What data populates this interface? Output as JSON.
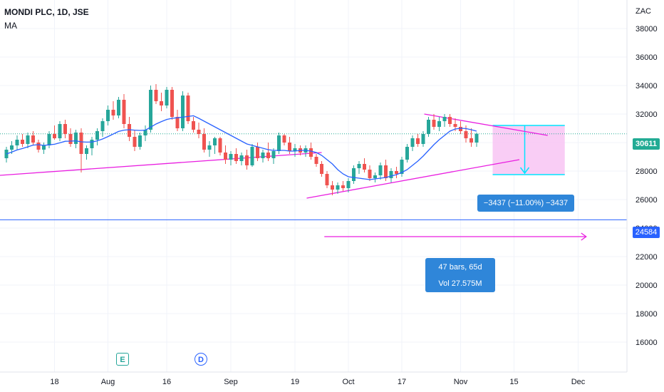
{
  "header": {
    "symbol_line": "MONDI PLC, 1D, JSE",
    "indicator": "MA"
  },
  "chart_data": {
    "type": "candlestick",
    "currency_label": "ZAC",
    "ylim": [
      15000,
      39500
    ],
    "y_ticks": [
      "38000",
      "36000",
      "34000",
      "32000",
      "30000",
      "28000",
      "26000",
      "24000",
      "22000",
      "20000",
      "18000",
      "16000"
    ],
    "x_ticks": [
      {
        "label": "18",
        "bar": 9
      },
      {
        "label": "Aug",
        "bar": 19
      },
      {
        "label": "16",
        "bar": 30
      },
      {
        "label": "Sep",
        "bar": 42
      },
      {
        "label": "19",
        "bar": 54
      },
      {
        "label": "Oct",
        "bar": 64
      },
      {
        "label": "17",
        "bar": 74
      },
      {
        "label": "Nov",
        "bar": 85
      },
      {
        "label": "15",
        "bar": 95
      },
      {
        "label": "Dec",
        "bar": 107
      }
    ],
    "candles": [
      [
        28900,
        29700,
        28600,
        29500
      ],
      [
        29500,
        30100,
        29200,
        29800
      ],
      [
        29800,
        30500,
        29500,
        30200
      ],
      [
        30200,
        30600,
        29700,
        29900
      ],
      [
        29900,
        30700,
        29600,
        30500
      ],
      [
        30500,
        30800,
        29800,
        30000
      ],
      [
        30000,
        30200,
        29300,
        29500
      ],
      [
        29500,
        30000,
        29200,
        29800
      ],
      [
        29800,
        30800,
        29600,
        30600
      ],
      [
        30600,
        31200,
        30200,
        30300
      ],
      [
        30300,
        31500,
        30100,
        31300
      ],
      [
        31300,
        31600,
        30300,
        30600
      ],
      [
        30600,
        31000,
        29700,
        29900
      ],
      [
        29900,
        30900,
        29600,
        30700
      ],
      [
        30700,
        31000,
        27900,
        29200
      ],
      [
        29200,
        29800,
        28800,
        29600
      ],
      [
        29600,
        30400,
        29100,
        30200
      ],
      [
        30200,
        31000,
        29800,
        30800
      ],
      [
        30800,
        31700,
        30400,
        31500
      ],
      [
        31500,
        32600,
        31200,
        32300
      ],
      [
        32300,
        32900,
        31600,
        31900
      ],
      [
        31900,
        33200,
        31700,
        33000
      ],
      [
        33000,
        33400,
        31000,
        31300
      ],
      [
        31300,
        31800,
        30100,
        30400
      ],
      [
        30400,
        30900,
        29400,
        29700
      ],
      [
        29700,
        30700,
        29500,
        30500
      ],
      [
        30500,
        31200,
        30100,
        30900
      ],
      [
        30900,
        34000,
        30700,
        33700
      ],
      [
        33700,
        34100,
        32700,
        32900
      ],
      [
        32900,
        33500,
        32200,
        32600
      ],
      [
        32600,
        33900,
        32400,
        33700
      ],
      [
        33700,
        33900,
        31600,
        31800
      ],
      [
        31800,
        32300,
        30800,
        31000
      ],
      [
        31000,
        33600,
        30800,
        33300
      ],
      [
        33300,
        33500,
        31300,
        31500
      ],
      [
        31500,
        31800,
        30700,
        30900
      ],
      [
        30900,
        31400,
        30300,
        30600
      ],
      [
        30600,
        31000,
        29300,
        29500
      ],
      [
        29500,
        30100,
        29000,
        29800
      ],
      [
        29800,
        30400,
        29200,
        30300
      ],
      [
        30300,
        30400,
        29100,
        29300
      ],
      [
        29300,
        29800,
        28500,
        28800
      ],
      [
        28800,
        29400,
        28400,
        29200
      ],
      [
        29200,
        29600,
        28500,
        28700
      ],
      [
        28700,
        29300,
        28400,
        29100
      ],
      [
        29100,
        29500,
        28100,
        28400
      ],
      [
        28400,
        29900,
        28300,
        29700
      ],
      [
        29700,
        30000,
        28700,
        28900
      ],
      [
        28900,
        29500,
        28600,
        29300
      ],
      [
        29300,
        30000,
        28700,
        28900
      ],
      [
        28900,
        29600,
        28500,
        29400
      ],
      [
        29400,
        30700,
        29200,
        30500
      ],
      [
        30500,
        30600,
        29800,
        30000
      ],
      [
        30000,
        30400,
        29200,
        29400
      ],
      [
        29400,
        29900,
        29000,
        29600
      ],
      [
        29600,
        29800,
        29100,
        29300
      ],
      [
        29300,
        29800,
        29000,
        29600
      ],
      [
        29600,
        30000,
        28800,
        29000
      ],
      [
        29000,
        29200,
        28300,
        28500
      ],
      [
        28500,
        28700,
        27600,
        27800
      ],
      [
        27800,
        28000,
        26800,
        27000
      ],
      [
        27000,
        27300,
        26300,
        26700
      ],
      [
        26700,
        27200,
        26400,
        27000
      ],
      [
        27000,
        27300,
        26600,
        26800
      ],
      [
        26800,
        27500,
        26500,
        27300
      ],
      [
        27300,
        28400,
        27100,
        28200
      ],
      [
        28200,
        28700,
        27800,
        28500
      ],
      [
        28500,
        28900,
        27900,
        28100
      ],
      [
        28100,
        28400,
        27300,
        27500
      ],
      [
        27500,
        27900,
        27200,
        27700
      ],
      [
        27700,
        28600,
        27400,
        28400
      ],
      [
        28400,
        28800,
        27300,
        27500
      ],
      [
        27500,
        28200,
        27200,
        28000
      ],
      [
        28000,
        28300,
        27500,
        27800
      ],
      [
        27800,
        29000,
        27600,
        28800
      ],
      [
        28800,
        29900,
        28600,
        29700
      ],
      [
        29700,
        30500,
        29400,
        30300
      ],
      [
        30300,
        30600,
        29700,
        29900
      ],
      [
        29900,
        30800,
        29700,
        30600
      ],
      [
        30600,
        31800,
        30400,
        31600
      ],
      [
        31600,
        32000,
        30900,
        31100
      ],
      [
        31100,
        31800,
        30800,
        31500
      ],
      [
        31500,
        32000,
        31100,
        31800
      ],
      [
        31800,
        32000,
        31100,
        31300
      ],
      [
        31300,
        31700,
        30800,
        31100
      ],
      [
        31100,
        31500,
        30600,
        30800
      ],
      [
        30800,
        31200,
        30000,
        30300
      ],
      [
        30300,
        31000,
        29700,
        30000
      ],
      [
        30000,
        30700,
        29700,
        30611
      ]
    ],
    "ma_series": [
      29200,
      29330,
      29480,
      29580,
      29700,
      29820,
      29850,
      29800,
      29840,
      29880,
      29980,
      30090,
      30100,
      30120,
      30050,
      30030,
      30040,
      30120,
      30250,
      30420,
      30600,
      30780,
      30870,
      30900,
      30870,
      30850,
      30870,
      31080,
      31300,
      31470,
      31620,
      31700,
      31740,
      31780,
      31830,
      31880,
      31700,
      31500,
      31300,
      31100,
      30900,
      30700,
      30500,
      30300,
      30100,
      29900,
      29800,
      29700,
      29600,
      29500,
      29450,
      29450,
      29450,
      29400,
      29400,
      29450,
      29450,
      29400,
      29300,
      29100,
      28800,
      28500,
      28100,
      27800,
      27600,
      27550,
      27500,
      27450,
      27400,
      27450,
      27500,
      27550,
      27650,
      27750,
      27900,
      28100,
      28400,
      28700,
      29050,
      29450,
      29850,
      30200,
      30500,
      30800,
      30950,
      31000,
      30980,
      30900,
      30800
    ],
    "last_price": "30611",
    "horizontal_level": "24584",
    "measure_label": "−3437 (−11.00%) −3437",
    "range_bars_label": "47 bars, 65d",
    "range_volume_label": "Vol 27.575M",
    "events": [
      "E",
      "D"
    ],
    "colors": {
      "up": "#26a69a",
      "down": "#ef5350",
      "ma": "#2962ff",
      "trendline": "#e91ee0",
      "level": "#2962ff",
      "measure_fill": "#f8c8f4",
      "measure_border": "#00e5ff",
      "label_bg": "#2f86d9",
      "price_tag": "#22ab94",
      "grid": "#f0f3fa"
    }
  }
}
